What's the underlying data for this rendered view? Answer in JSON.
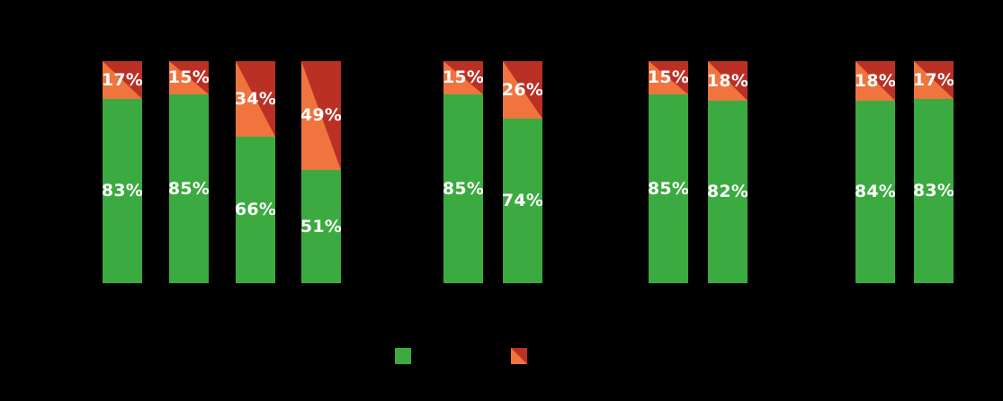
{
  "page": {
    "background": "#000000"
  },
  "chart_data": {
    "type": "bar",
    "stacked": true,
    "orientation": "vertical",
    "value_unit": "%",
    "ylim": [
      0,
      100
    ],
    "grid": false,
    "axis_text_visible": false,
    "series": [
      {
        "id": "green",
        "swatch": "solid-square",
        "color": "#3BAA40"
      },
      {
        "id": "orange_red",
        "swatch": "diagonal-split-square",
        "color_lower_left": "#F0743D",
        "color_upper_right": "#BA3025"
      }
    ],
    "legend": {
      "position": "bottom-center",
      "entries": [
        {
          "series": "green"
        },
        {
          "series": "orange_red"
        }
      ]
    },
    "groups": [
      {
        "bars": [
          {
            "green": 83,
            "orange_red": 17,
            "green_label": "83%",
            "top_label": "17%"
          },
          {
            "green": 85,
            "orange_red": 15,
            "green_label": "85%",
            "top_label": "15%"
          },
          {
            "green": 66,
            "orange_red": 34,
            "green_label": "66%",
            "top_label": "34%"
          },
          {
            "green": 51,
            "orange_red": 49,
            "green_label": "51%",
            "top_label": "49%"
          }
        ]
      },
      {
        "bars": [
          {
            "green": 85,
            "orange_red": 15,
            "green_label": "85%",
            "top_label": "15%"
          },
          {
            "green": 74,
            "orange_red": 26,
            "green_label": "74%",
            "top_label": "26%"
          }
        ]
      },
      {
        "bars": [
          {
            "green": 85,
            "orange_red": 15,
            "green_label": "85%",
            "top_label": "15%"
          },
          {
            "green": 82,
            "orange_red": 18,
            "green_label": "82%",
            "top_label": "18%"
          }
        ]
      },
      {
        "bars": [
          {
            "green": 84,
            "orange_red": 18,
            "green_label": "84%",
            "top_label": "18%"
          },
          {
            "green": 83,
            "orange_red": 17,
            "green_label": "83%",
            "top_label": "17%"
          }
        ]
      }
    ]
  }
}
